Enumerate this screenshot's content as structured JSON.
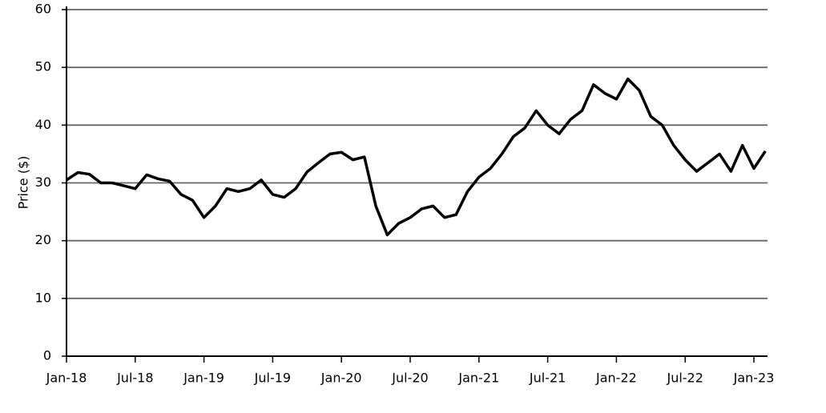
{
  "chart_data": {
    "type": "line",
    "ylabel": "Price ($)",
    "x": [
      "2018-01",
      "2018-02",
      "2018-03",
      "2018-04",
      "2018-05",
      "2018-06",
      "2018-07",
      "2018-08",
      "2018-09",
      "2018-10",
      "2018-11",
      "2018-12",
      "2019-01",
      "2019-02",
      "2019-03",
      "2019-04",
      "2019-05",
      "2019-06",
      "2019-07",
      "2019-08",
      "2019-09",
      "2019-10",
      "2019-11",
      "2019-12",
      "2020-01",
      "2020-02",
      "2020-03",
      "2020-04",
      "2020-05",
      "2020-06",
      "2020-07",
      "2020-08",
      "2020-09",
      "2020-10",
      "2020-11",
      "2020-12",
      "2021-01",
      "2021-02",
      "2021-03",
      "2021-04",
      "2021-05",
      "2021-06",
      "2021-07",
      "2021-08",
      "2021-09",
      "2021-10",
      "2021-11",
      "2021-12",
      "2022-01",
      "2022-02",
      "2022-03",
      "2022-04",
      "2022-05",
      "2022-06",
      "2022-07",
      "2022-08",
      "2022-09",
      "2022-10",
      "2022-11",
      "2022-12",
      "2023-01",
      "2023-02"
    ],
    "series": [
      {
        "name": "Price",
        "color": "#000000",
        "values": [
          30.5,
          31.8,
          31.5,
          30,
          30,
          29.5,
          29,
          31.4,
          30.7,
          30.3,
          28,
          27,
          24,
          26,
          29,
          28.5,
          29,
          30.5,
          28,
          27.5,
          29,
          31.9,
          33.5,
          35,
          35.3,
          34,
          34.5,
          26,
          21,
          23,
          24,
          25.5,
          26,
          24,
          24.5,
          28.5,
          31,
          32.5,
          35,
          38,
          39.5,
          42.5,
          40,
          38.5,
          41,
          42.5,
          47,
          45.5,
          44.5,
          48,
          46,
          41.5,
          40,
          36.5,
          34,
          32,
          33.5,
          35,
          32,
          36.5,
          32.5,
          35.5
        ]
      }
    ],
    "xticks": [
      {
        "value": "2018-01",
        "label": "Jan-18"
      },
      {
        "value": "2018-07",
        "label": "Jul-18"
      },
      {
        "value": "2019-01",
        "label": "Jan-19"
      },
      {
        "value": "2019-07",
        "label": "Jul-19"
      },
      {
        "value": "2020-01",
        "label": "Jan-20"
      },
      {
        "value": "2020-07",
        "label": "Jul-20"
      },
      {
        "value": "2021-01",
        "label": "Jan-21"
      },
      {
        "value": "2021-07",
        "label": "Jul-21"
      },
      {
        "value": "2022-01",
        "label": "Jan-22"
      },
      {
        "value": "2022-07",
        "label": "Jul-22"
      },
      {
        "value": "2023-01",
        "label": "Jan-23"
      }
    ],
    "ylim": [
      0,
      60
    ],
    "yticks": [
      0,
      10,
      20,
      30,
      40,
      50,
      60
    ],
    "grid": true
  }
}
